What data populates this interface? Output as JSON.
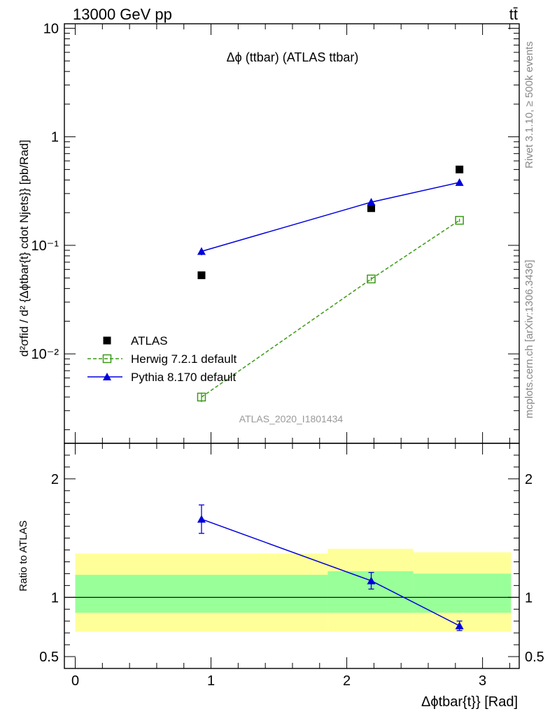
{
  "header": {
    "left_title": "13000 GeV pp",
    "right_title": "tt̄"
  },
  "side_labels": {
    "rivet": "Rivet 3.1.10, ≥ 500k events",
    "mcplots": "mcplots.cern.ch [arXiv:1306.3436]"
  },
  "chart_data": [
    {
      "type": "scatter",
      "title": "Δϕ (ttbar) (ATLAS ttbar)",
      "watermark": "ATLAS_2020_I1801434",
      "ylabel": "d²σfid / d² {Δϕtbar{t} cdot Njets}} [pb/Rad]",
      "yscale": "log",
      "ylim": [
        0.0015,
        11
      ],
      "xlim": [
        -0.08,
        3.27
      ],
      "x_ticks": [
        0,
        1,
        2,
        3
      ],
      "y_ticks": [
        {
          "value": 10,
          "label": "10"
        },
        {
          "value": 1,
          "label": "1"
        },
        {
          "value": 0.1,
          "label": "10⁻¹"
        },
        {
          "value": 0.01,
          "label": "10⁻²"
        }
      ],
      "legend_position": "bottom-left",
      "series": [
        {
          "name": "ATLAS",
          "color": "#000000",
          "marker": "filled-square",
          "line": "none",
          "x": [
            0.93,
            2.18,
            2.83
          ],
          "y": [
            0.053,
            0.22,
            0.5
          ]
        },
        {
          "name": "Herwig 7.2.1 default",
          "color": "#3a9a15",
          "marker": "open-square",
          "line": "dashed",
          "x": [
            0.93,
            2.18,
            2.83
          ],
          "y": [
            0.004,
            0.049,
            0.17
          ],
          "yerr": [
            0.0004,
            0.002,
            0.006
          ]
        },
        {
          "name": "Pythia 8.170 default",
          "color": "#0000dd",
          "marker": "filled-triangle",
          "line": "solid",
          "x": [
            0.93,
            2.18,
            2.83
          ],
          "y": [
            0.088,
            0.25,
            0.38
          ],
          "yerr": [
            0.007,
            0.02,
            0.015
          ]
        }
      ]
    },
    {
      "type": "scatter",
      "ylabel": "Ratio to ATLAS",
      "xlabel": "Δϕtbar{t}} [Rad]",
      "ylim": [
        0.4,
        2.3
      ],
      "xlim": [
        -0.08,
        3.27
      ],
      "y_ticks": [
        {
          "value": 2,
          "label": "2"
        },
        {
          "value": 1,
          "label": "1"
        },
        {
          "value": 0.5,
          "label": "0.5"
        }
      ],
      "x_ticks": [
        {
          "value": 0,
          "label": "0"
        },
        {
          "value": 1,
          "label": "1"
        },
        {
          "value": 2,
          "label": "2"
        },
        {
          "value": 3,
          "label": "3"
        }
      ],
      "reference_line": 1,
      "uncertainty_bands": [
        {
          "x": [
            0.0,
            1.86
          ],
          "outer": [
            0.71,
            1.37
          ],
          "inner": [
            0.87,
            1.19
          ]
        },
        {
          "x": [
            1.86,
            2.49
          ],
          "outer": [
            0.71,
            1.41
          ],
          "inner": [
            0.87,
            1.22
          ]
        },
        {
          "x": [
            2.49,
            3.21
          ],
          "outer": [
            0.71,
            1.38
          ],
          "inner": [
            0.87,
            1.2
          ]
        }
      ],
      "band_colors": {
        "outer": "#ffff99",
        "inner": "#99ff99"
      },
      "series": [
        {
          "name": "Pythia 8.170 default",
          "color": "#0000dd",
          "x": [
            0.93,
            2.18,
            2.83
          ],
          "y": [
            1.66,
            1.14,
            0.76
          ],
          "yerr": [
            0.12,
            0.07,
            0.04
          ]
        }
      ]
    }
  ]
}
